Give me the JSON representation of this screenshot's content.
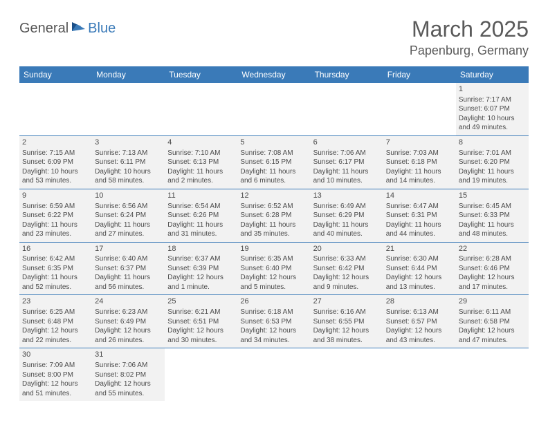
{
  "logo": {
    "part1": "General",
    "part2": "Blue"
  },
  "title": "March 2025",
  "location": "Papenburg, Germany",
  "day_headers": [
    "Sunday",
    "Monday",
    "Tuesday",
    "Wednesday",
    "Thursday",
    "Friday",
    "Saturday"
  ],
  "colors": {
    "header_bg": "#3a7ab8",
    "header_text": "#ffffff",
    "cell_bg": "#f2f2f2",
    "border": "#3a7ab8",
    "text": "#4a4a4a",
    "logo_accent": "#3a7ab8"
  },
  "weeks": [
    [
      null,
      null,
      null,
      null,
      null,
      null,
      {
        "n": "1",
        "sr": "Sunrise: 7:17 AM",
        "ss": "Sunset: 6:07 PM",
        "d1": "Daylight: 10 hours",
        "d2": "and 49 minutes."
      }
    ],
    [
      {
        "n": "2",
        "sr": "Sunrise: 7:15 AM",
        "ss": "Sunset: 6:09 PM",
        "d1": "Daylight: 10 hours",
        "d2": "and 53 minutes."
      },
      {
        "n": "3",
        "sr": "Sunrise: 7:13 AM",
        "ss": "Sunset: 6:11 PM",
        "d1": "Daylight: 10 hours",
        "d2": "and 58 minutes."
      },
      {
        "n": "4",
        "sr": "Sunrise: 7:10 AM",
        "ss": "Sunset: 6:13 PM",
        "d1": "Daylight: 11 hours",
        "d2": "and 2 minutes."
      },
      {
        "n": "5",
        "sr": "Sunrise: 7:08 AM",
        "ss": "Sunset: 6:15 PM",
        "d1": "Daylight: 11 hours",
        "d2": "and 6 minutes."
      },
      {
        "n": "6",
        "sr": "Sunrise: 7:06 AM",
        "ss": "Sunset: 6:17 PM",
        "d1": "Daylight: 11 hours",
        "d2": "and 10 minutes."
      },
      {
        "n": "7",
        "sr": "Sunrise: 7:03 AM",
        "ss": "Sunset: 6:18 PM",
        "d1": "Daylight: 11 hours",
        "d2": "and 14 minutes."
      },
      {
        "n": "8",
        "sr": "Sunrise: 7:01 AM",
        "ss": "Sunset: 6:20 PM",
        "d1": "Daylight: 11 hours",
        "d2": "and 19 minutes."
      }
    ],
    [
      {
        "n": "9",
        "sr": "Sunrise: 6:59 AM",
        "ss": "Sunset: 6:22 PM",
        "d1": "Daylight: 11 hours",
        "d2": "and 23 minutes."
      },
      {
        "n": "10",
        "sr": "Sunrise: 6:56 AM",
        "ss": "Sunset: 6:24 PM",
        "d1": "Daylight: 11 hours",
        "d2": "and 27 minutes."
      },
      {
        "n": "11",
        "sr": "Sunrise: 6:54 AM",
        "ss": "Sunset: 6:26 PM",
        "d1": "Daylight: 11 hours",
        "d2": "and 31 minutes."
      },
      {
        "n": "12",
        "sr": "Sunrise: 6:52 AM",
        "ss": "Sunset: 6:28 PM",
        "d1": "Daylight: 11 hours",
        "d2": "and 35 minutes."
      },
      {
        "n": "13",
        "sr": "Sunrise: 6:49 AM",
        "ss": "Sunset: 6:29 PM",
        "d1": "Daylight: 11 hours",
        "d2": "and 40 minutes."
      },
      {
        "n": "14",
        "sr": "Sunrise: 6:47 AM",
        "ss": "Sunset: 6:31 PM",
        "d1": "Daylight: 11 hours",
        "d2": "and 44 minutes."
      },
      {
        "n": "15",
        "sr": "Sunrise: 6:45 AM",
        "ss": "Sunset: 6:33 PM",
        "d1": "Daylight: 11 hours",
        "d2": "and 48 minutes."
      }
    ],
    [
      {
        "n": "16",
        "sr": "Sunrise: 6:42 AM",
        "ss": "Sunset: 6:35 PM",
        "d1": "Daylight: 11 hours",
        "d2": "and 52 minutes."
      },
      {
        "n": "17",
        "sr": "Sunrise: 6:40 AM",
        "ss": "Sunset: 6:37 PM",
        "d1": "Daylight: 11 hours",
        "d2": "and 56 minutes."
      },
      {
        "n": "18",
        "sr": "Sunrise: 6:37 AM",
        "ss": "Sunset: 6:39 PM",
        "d1": "Daylight: 12 hours",
        "d2": "and 1 minute."
      },
      {
        "n": "19",
        "sr": "Sunrise: 6:35 AM",
        "ss": "Sunset: 6:40 PM",
        "d1": "Daylight: 12 hours",
        "d2": "and 5 minutes."
      },
      {
        "n": "20",
        "sr": "Sunrise: 6:33 AM",
        "ss": "Sunset: 6:42 PM",
        "d1": "Daylight: 12 hours",
        "d2": "and 9 minutes."
      },
      {
        "n": "21",
        "sr": "Sunrise: 6:30 AM",
        "ss": "Sunset: 6:44 PM",
        "d1": "Daylight: 12 hours",
        "d2": "and 13 minutes."
      },
      {
        "n": "22",
        "sr": "Sunrise: 6:28 AM",
        "ss": "Sunset: 6:46 PM",
        "d1": "Daylight: 12 hours",
        "d2": "and 17 minutes."
      }
    ],
    [
      {
        "n": "23",
        "sr": "Sunrise: 6:25 AM",
        "ss": "Sunset: 6:48 PM",
        "d1": "Daylight: 12 hours",
        "d2": "and 22 minutes."
      },
      {
        "n": "24",
        "sr": "Sunrise: 6:23 AM",
        "ss": "Sunset: 6:49 PM",
        "d1": "Daylight: 12 hours",
        "d2": "and 26 minutes."
      },
      {
        "n": "25",
        "sr": "Sunrise: 6:21 AM",
        "ss": "Sunset: 6:51 PM",
        "d1": "Daylight: 12 hours",
        "d2": "and 30 minutes."
      },
      {
        "n": "26",
        "sr": "Sunrise: 6:18 AM",
        "ss": "Sunset: 6:53 PM",
        "d1": "Daylight: 12 hours",
        "d2": "and 34 minutes."
      },
      {
        "n": "27",
        "sr": "Sunrise: 6:16 AM",
        "ss": "Sunset: 6:55 PM",
        "d1": "Daylight: 12 hours",
        "d2": "and 38 minutes."
      },
      {
        "n": "28",
        "sr": "Sunrise: 6:13 AM",
        "ss": "Sunset: 6:57 PM",
        "d1": "Daylight: 12 hours",
        "d2": "and 43 minutes."
      },
      {
        "n": "29",
        "sr": "Sunrise: 6:11 AM",
        "ss": "Sunset: 6:58 PM",
        "d1": "Daylight: 12 hours",
        "d2": "and 47 minutes."
      }
    ],
    [
      {
        "n": "30",
        "sr": "Sunrise: 7:09 AM",
        "ss": "Sunset: 8:00 PM",
        "d1": "Daylight: 12 hours",
        "d2": "and 51 minutes."
      },
      {
        "n": "31",
        "sr": "Sunrise: 7:06 AM",
        "ss": "Sunset: 8:02 PM",
        "d1": "Daylight: 12 hours",
        "d2": "and 55 minutes."
      },
      null,
      null,
      null,
      null,
      null
    ]
  ]
}
